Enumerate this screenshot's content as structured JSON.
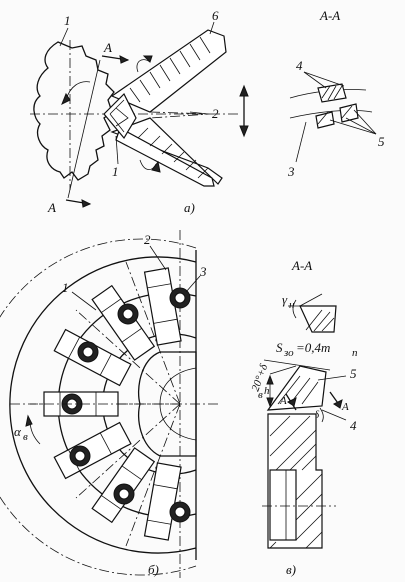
{
  "figure_a": {
    "caption": "а)",
    "labels": {
      "gear": "1",
      "tooth_edge": "1",
      "tool_body": "2",
      "tip": "6",
      "section": "A",
      "section_lower": "A"
    },
    "section_view": {
      "title": "А-А",
      "labels": {
        "insert_top": "4",
        "inserts": "5",
        "body": "3"
      }
    }
  },
  "figure_b": {
    "caption": "б)",
    "labels": {
      "circle": "1",
      "insert": "2",
      "screw": "3",
      "angle": "α"
    },
    "angle_subscript": "в"
  },
  "figure_v": {
    "caption": "в)",
    "section_title": "А-А",
    "gamma_label": "γ",
    "gamma_subscript": "н",
    "feed_label": "S",
    "feed_subscript": "зо",
    "feed_value": "=0,4m",
    "feed_value_subscript": "n",
    "angle_label": "20°+δ",
    "height_label": "h",
    "height_subscript": "в",
    "delta_label": "δ",
    "labels": {
      "edge": "5",
      "body": "4",
      "section_left": "A",
      "section_right": "A"
    }
  },
  "colors": {
    "ink": "#111111",
    "paper": "#fbfbfb"
  }
}
